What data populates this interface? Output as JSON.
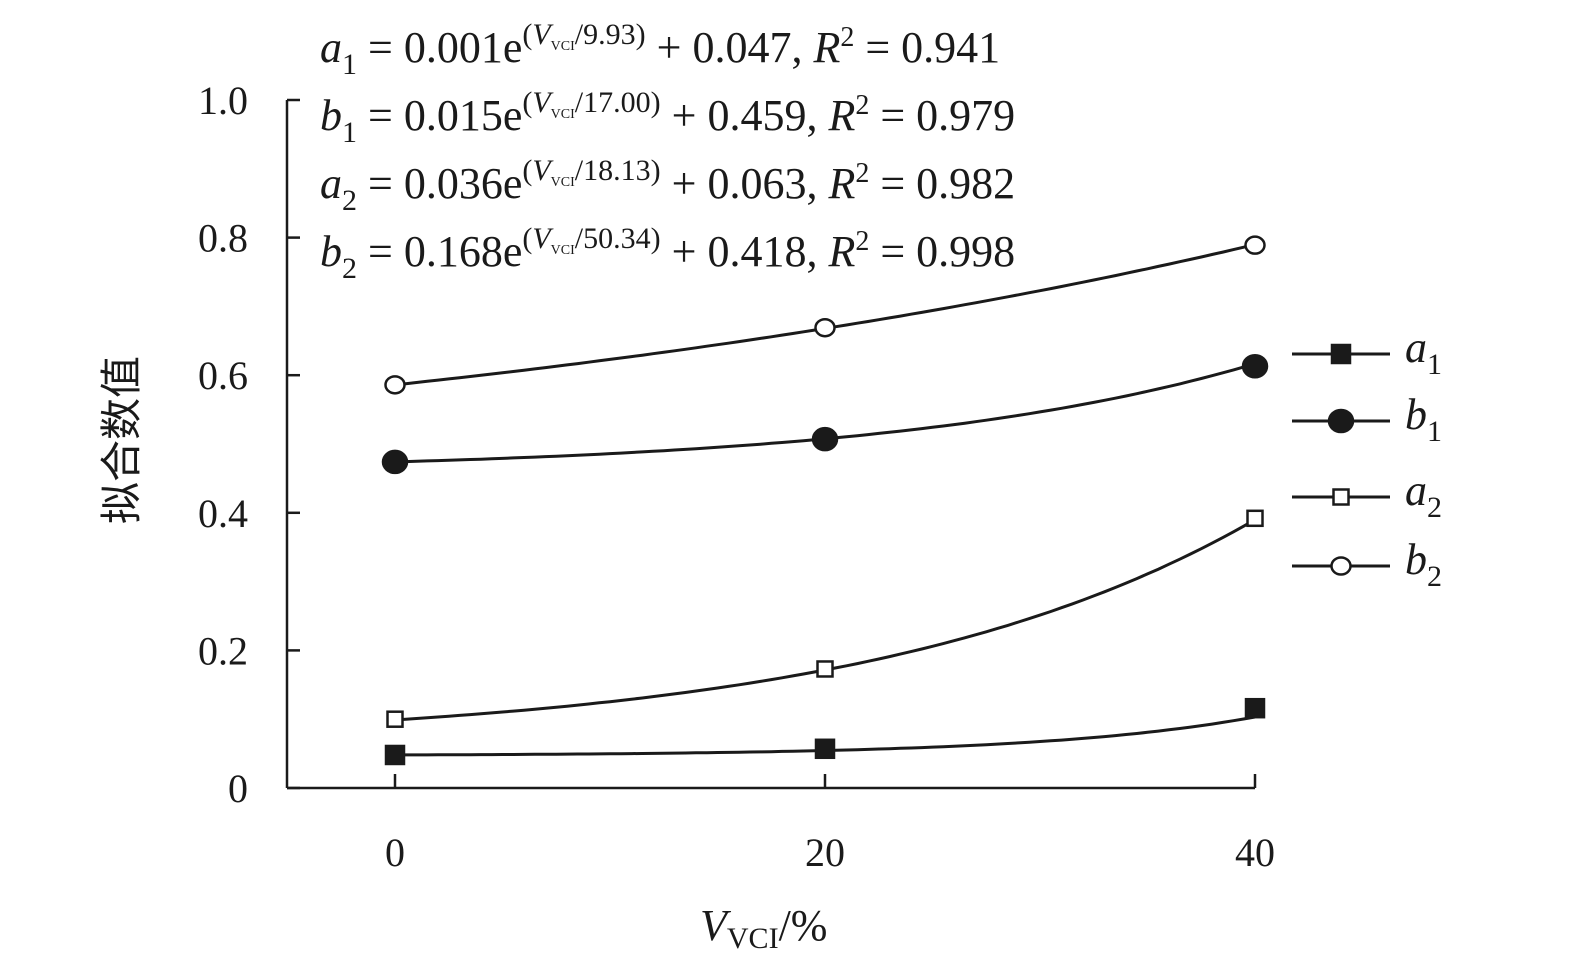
{
  "chart_data": {
    "type": "line",
    "title": "",
    "xlabel": {
      "var": "V",
      "sub": "VCI",
      "unit": "/%"
    },
    "ylabel": "拟合数值",
    "x": [
      0,
      20,
      40
    ],
    "xticks": [
      "0",
      "20",
      "40"
    ],
    "yticks": [
      "0",
      "0.2",
      "0.4",
      "0.6",
      "0.8",
      "1.0"
    ],
    "xlim": [
      0,
      40
    ],
    "ylim": [
      0,
      1.0
    ],
    "grid": false,
    "legend_position": "right",
    "series": [
      {
        "name": "a",
        "sub": "1",
        "marker": "filled-square",
        "values": [
          0.048,
          0.057,
          0.116
        ],
        "fit": {
          "A": 0.001,
          "T": 9.93,
          "C": 0.047
        }
      },
      {
        "name": "b",
        "sub": "1",
        "marker": "filled-circle",
        "values": [
          0.474,
          0.507,
          0.613
        ],
        "fit": {
          "A": 0.015,
          "T": 17.0,
          "C": 0.459
        }
      },
      {
        "name": "a",
        "sub": "2",
        "marker": "open-square",
        "values": [
          0.1,
          0.173,
          0.392
        ],
        "fit": {
          "A": 0.036,
          "T": 18.13,
          "C": 0.063
        }
      },
      {
        "name": "b",
        "sub": "2",
        "marker": "open-circle",
        "values": [
          0.586,
          0.669,
          0.789
        ],
        "fit": {
          "A": 0.168,
          "T": 50.34,
          "C": 0.418
        }
      }
    ],
    "annotations": [
      {
        "var": "a",
        "sub": "1",
        "lhs": " = 0.001e",
        "exp": "9.93",
        "rhs": " + 0.047, ",
        "r2": "0.941"
      },
      {
        "var": "b",
        "sub": "1",
        "lhs": " = 0.015e",
        "exp": "17.00",
        "rhs": " + 0.459, ",
        "r2": "0.979"
      },
      {
        "var": "a",
        "sub": "2",
        "lhs": " = 0.036e",
        "exp": "18.13",
        "rhs": " + 0.063, ",
        "r2": "0.982"
      },
      {
        "var": "b",
        "sub": "2",
        "lhs": " = 0.168e",
        "exp": "50.34",
        "rhs": " + 0.418, ",
        "r2": "0.998"
      }
    ],
    "colors": {
      "ink": "#1a1a1a"
    }
  }
}
